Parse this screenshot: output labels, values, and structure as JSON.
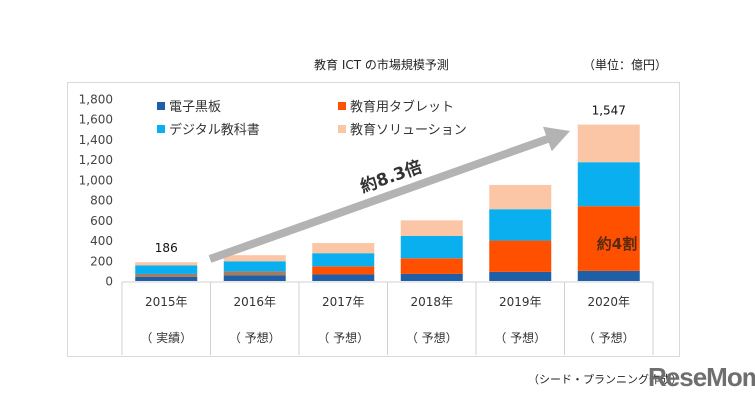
{
  "chart_data": {
    "type": "bar",
    "stacked": true,
    "title": "教育 ICT の市場規模予測",
    "unit_label": "（単位：億円）",
    "xlabel": "",
    "ylabel": "",
    "ylim": [
      0,
      1800
    ],
    "yticks": [
      0,
      200,
      400,
      600,
      800,
      1000,
      1200,
      1400,
      1600,
      1800
    ],
    "ytick_labels": [
      "0",
      "200",
      "400",
      "600",
      "800",
      "1,000",
      "1,200",
      "1,400",
      "1,600",
      "1,800"
    ],
    "categories": [
      "2015年",
      "2016年",
      "2017年",
      "2018年",
      "2019年",
      "2020年"
    ],
    "category_sublabels": [
      "（ 実績）",
      "（ 予想）",
      "（ 予想）",
      "（ 予想）",
      "（ 予想）",
      "（ 予想）"
    ],
    "series": [
      {
        "name": "電子黒板",
        "color": "#1f5fa8",
        "values": [
          40,
          55,
          65,
          70,
          90,
          100
        ]
      },
      {
        "name": "教育用タブレット",
        "color": "#ff5000",
        "values": [
          30,
          40,
          80,
          155,
          310,
          640
        ]
      },
      {
        "name": "デジタル教科書",
        "color": "#0aaff0",
        "values": [
          85,
          100,
          130,
          220,
          310,
          435
        ]
      },
      {
        "name": "教育ソリューション",
        "color": "#fbc6a6",
        "values": [
          31,
          60,
          100,
          155,
          240,
          372
        ]
      }
    ],
    "first_series_2015_color": "#a87a5e",
    "totals_labels": [
      {
        "category": "2015年",
        "text": "186"
      },
      {
        "category": "2020年",
        "text": "1,547"
      }
    ],
    "legend_position": "top-left",
    "grid": false,
    "annotations": {
      "growth_arrow_text": "約8.3倍",
      "tablet_share_text": "約4割"
    }
  },
  "footer": {
    "source": "（シード・プランニング作成）",
    "logo": "ReseMom"
  }
}
